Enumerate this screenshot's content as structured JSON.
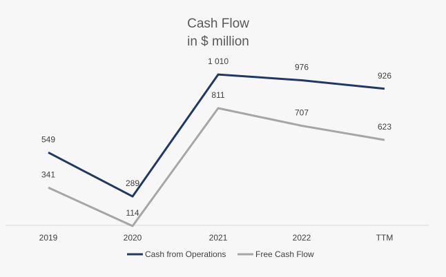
{
  "chart_data": {
    "type": "line",
    "title": "Cash Flow",
    "subtitle": "in $ million",
    "xlabel": "",
    "ylabel": "",
    "categories": [
      "2019",
      "2020",
      "2021",
      "2022",
      "TTM"
    ],
    "ylim": [
      0,
      1100
    ],
    "grid": false,
    "legend": "bottom",
    "series": [
      {
        "name": "Cash from Operations",
        "color": "#203864",
        "values": [
          549,
          289,
          1010,
          976,
          926
        ],
        "labels": [
          "549",
          "289",
          "1 010",
          "976",
          "926"
        ]
      },
      {
        "name": "Free Cash Flow",
        "color": "#a6a6a6",
        "values": [
          341,
          114,
          811,
          707,
          623
        ],
        "labels": [
          "341",
          "114",
          "811",
          "707",
          "623"
        ]
      }
    ]
  }
}
